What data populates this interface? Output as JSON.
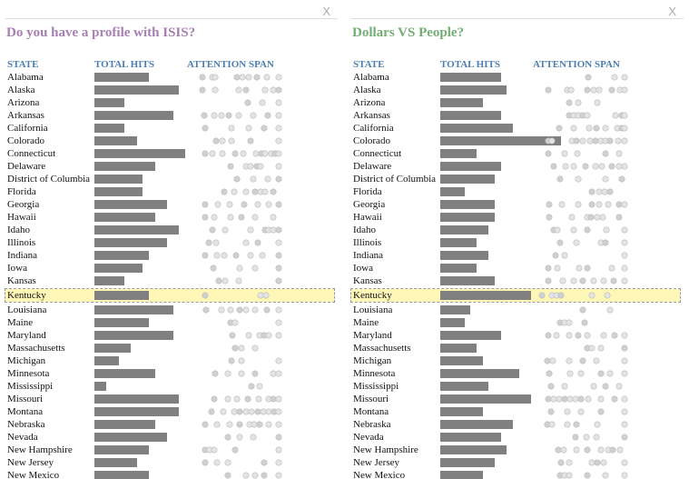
{
  "panels": [
    {
      "close_label": "X",
      "title": "Do you have a profile with ISIS?",
      "title_color": "#a77fb3",
      "headers": {
        "state": "STATE",
        "hits": "TOTAL HITS",
        "attention": "ATTENTION SPAN"
      },
      "selected_state": "Kentucky"
    },
    {
      "close_label": "X",
      "title": "Dollars VS People?",
      "title_color": "#74ad74",
      "headers": {
        "state": "STATE",
        "hits": "TOTAL HITS",
        "attention": "ATTENTION SPAN"
      },
      "selected_state": "Kentucky"
    }
  ],
  "chart_data": [
    {
      "type": "bar",
      "title": "Do you have a profile with ISIS?",
      "xlabel": "TOTAL HITS",
      "categories": [
        "Alabama",
        "Alaska",
        "Arizona",
        "Arkansas",
        "California",
        "Colorado",
        "Connecticut",
        "Delaware",
        "District of Columbia",
        "Florida",
        "Georgia",
        "Hawaii",
        "Idaho",
        "Illinois",
        "Indiana",
        "Iowa",
        "Kansas",
        "Kentucky",
        "Louisiana",
        "Maine",
        "Maryland",
        "Massachusetts",
        "Michigan",
        "Minnesota",
        "Mississippi",
        "Missouri",
        "Montana",
        "Nebraska",
        "Nevada",
        "New Hampshire",
        "New Jersey",
        "New Mexico"
      ],
      "values": [
        9,
        14,
        5,
        13,
        5,
        7,
        15,
        10,
        8,
        8,
        12,
        10,
        14,
        12,
        9,
        8,
        5,
        9,
        13,
        9,
        13,
        6,
        4,
        10,
        2,
        14,
        14,
        10,
        12,
        9,
        7,
        9
      ],
      "attention": [
        [
          0.12,
          0.23,
          0.26,
          0.5,
          0.56,
          0.63,
          0.72,
          0.83,
          0.96
        ],
        [
          0.12,
          0.26,
          0.52,
          0.6,
          0.81,
          0.9,
          0.96
        ],
        [
          0.62,
          0.78,
          0.96
        ],
        [
          0.14,
          0.25,
          0.33,
          0.41,
          0.52,
          0.68,
          0.84,
          0.96
        ],
        [
          0.15,
          0.44,
          0.63,
          0.8,
          0.96
        ],
        [
          0.27,
          0.34,
          0.44,
          0.65,
          0.96
        ],
        [
          0.15,
          0.23,
          0.34,
          0.48,
          0.57,
          0.71,
          0.77,
          0.81,
          0.88,
          0.92,
          0.96
        ],
        [
          0.43,
          0.6,
          0.65,
          0.72,
          0.76,
          0.96
        ],
        [
          0.5,
          0.68,
          0.84,
          0.96
        ],
        [
          0.36,
          0.47,
          0.6,
          0.7,
          0.76,
          0.81,
          0.9
        ],
        [
          0.15,
          0.29,
          0.42,
          0.58,
          0.73,
          0.85,
          0.96
        ],
        [
          0.15,
          0.25,
          0.43,
          0.55,
          0.7,
          0.9
        ],
        [
          0.23,
          0.37,
          0.65,
          0.81,
          0.85,
          0.9,
          0.96
        ],
        [
          0.19,
          0.27,
          0.6,
          0.73,
          0.96
        ],
        [
          0.15,
          0.28,
          0.36,
          0.49,
          0.65,
          0.78,
          0.96
        ],
        [
          0.24,
          0.53,
          0.7,
          0.96
        ],
        [
          0.3,
          0.37,
          0.52,
          0.96
        ],
        [
          0.15,
          0.76,
          0.82
        ],
        [
          0.16,
          0.33,
          0.43,
          0.53,
          0.6,
          0.7,
          0.83,
          0.96
        ],
        [
          0.43,
          0.48,
          0.96
        ],
        [
          0.45,
          0.63,
          0.75,
          0.8,
          0.85,
          0.96
        ],
        [
          0.48,
          0.55,
          0.7
        ],
        [
          0.44,
          0.55,
          0.96
        ],
        [
          0.26,
          0.4,
          0.55,
          0.7,
          0.9,
          0.96
        ],
        [
          0.66,
          0.75
        ],
        [
          0.25,
          0.4,
          0.5,
          0.62,
          0.74,
          0.85,
          0.9,
          0.96
        ],
        [
          0.22,
          0.35,
          0.47,
          0.53,
          0.6,
          0.66,
          0.73,
          0.79,
          0.85,
          0.91,
          0.96
        ],
        [
          0.15,
          0.28,
          0.42,
          0.53,
          0.64,
          0.69,
          0.75,
          0.85,
          0.96
        ],
        [
          0.4,
          0.53,
          0.68,
          0.96
        ],
        [
          0.15,
          0.2,
          0.25,
          0.48,
          0.96
        ],
        [
          0.15,
          0.28,
          0.4,
          0.8,
          0.96
        ],
        [
          0.4,
          0.6,
          0.7,
          0.8,
          0.96
        ]
      ]
    },
    {
      "type": "bar",
      "title": "Dollars VS People?",
      "xlabel": "TOTAL HITS",
      "categories": [
        "Alabama",
        "Alaska",
        "Arizona",
        "Arkansas",
        "California",
        "Colorado",
        "Connecticut",
        "Delaware",
        "District of Columbia",
        "Florida",
        "Georgia",
        "Hawaii",
        "Idaho",
        "Illinois",
        "Indiana",
        "Iowa",
        "Kansas",
        "Kentucky",
        "Louisiana",
        "Maine",
        "Maryland",
        "Massachusetts",
        "Michigan",
        "Minnesota",
        "Mississippi",
        "Missouri",
        "Montana",
        "Nebraska",
        "Nevada",
        "New Hampshire",
        "New Jersey",
        "New Mexico"
      ],
      "values": [
        10,
        11,
        7,
        10,
        12,
        20,
        6,
        10,
        9,
        4,
        9,
        9,
        8,
        6,
        8,
        6,
        9,
        15,
        5,
        4,
        10,
        6,
        7,
        13,
        8,
        15,
        7,
        12,
        10,
        11,
        9,
        7
      ],
      "attention": [
        [
          0.56,
          0.85,
          0.96
        ],
        [
          0.12,
          0.33,
          0.37,
          0.55,
          0.62,
          0.68,
          0.82,
          0.91,
          0.96
        ],
        [
          0.35,
          0.45,
          0.66
        ],
        [
          0.35,
          0.4,
          0.45,
          0.5,
          0.55,
          0.86,
          0.93,
          0.96
        ],
        [
          0.24,
          0.4,
          0.57,
          0.65,
          0.75,
          0.88,
          0.93,
          0.96
        ],
        [
          0.12,
          0.16,
          0.38,
          0.43,
          0.5,
          0.58,
          0.64,
          0.7,
          0.75,
          0.8,
          0.89,
          0.96
        ],
        [
          0.12,
          0.3,
          0.44,
          0.75,
          0.9
        ],
        [
          0.18,
          0.31,
          0.4,
          0.53,
          0.64,
          0.71,
          0.82,
          0.9,
          0.96
        ],
        [
          0.25,
          0.45,
          0.75,
          0.93
        ],
        [
          0.6,
          0.68,
          0.74,
          0.8
        ],
        [
          0.13,
          0.27,
          0.45,
          0.6,
          0.68,
          0.78,
          0.9,
          0.96
        ],
        [
          0.13,
          0.38,
          0.55,
          0.59,
          0.66,
          0.72,
          0.9
        ],
        [
          0.18,
          0.22,
          0.4,
          0.55,
          0.76,
          0.96
        ],
        [
          0.25,
          0.43,
          0.7,
          0.75,
          0.96
        ],
        [
          0.2,
          0.3,
          0.96
        ],
        [
          0.12,
          0.22,
          0.46,
          0.55,
          0.82,
          0.96
        ],
        [
          0.12,
          0.28,
          0.4,
          0.5,
          0.62,
          0.73,
          0.84,
          0.96
        ],
        [
          0.05,
          0.16,
          0.21,
          0.26,
          0.6,
          0.77
        ],
        [
          0.5,
          0.8
        ],
        [
          0.25,
          0.3,
          0.35,
          0.52
        ],
        [
          0.12,
          0.21,
          0.35,
          0.45,
          0.55,
          0.73,
          0.85,
          0.96
        ],
        [
          0.55,
          0.6,
          0.7,
          0.96
        ],
        [
          0.11,
          0.17,
          0.35,
          0.5,
          0.65,
          0.96
        ],
        [
          0.13,
          0.36,
          0.48,
          0.7,
          0.8,
          0.96
        ],
        [
          0.15,
          0.3,
          0.62,
          0.75,
          0.9
        ],
        [
          0.12,
          0.18,
          0.24,
          0.3,
          0.36,
          0.42,
          0.48,
          0.56,
          0.7,
          0.85,
          0.96
        ],
        [
          0.15,
          0.33,
          0.48,
          0.7,
          0.96
        ],
        [
          0.11,
          0.16,
          0.33,
          0.43,
          0.66,
          0.96
        ],
        [
          0.42,
          0.54,
          0.65,
          0.96
        ],
        [
          0.23,
          0.29,
          0.43,
          0.55,
          0.7,
          0.78,
          0.83,
          0.91
        ],
        [
          0.26,
          0.35,
          0.6,
          0.66,
          0.73,
          0.96
        ],
        [
          0.25,
          0.3,
          0.35,
          0.55,
          0.75,
          0.96
        ]
      ]
    }
  ]
}
